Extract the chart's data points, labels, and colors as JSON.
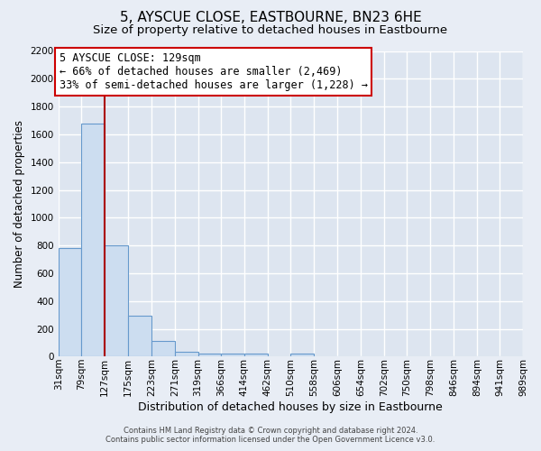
{
  "title": "5, AYSCUE CLOSE, EASTBOURNE, BN23 6HE",
  "subtitle": "Size of property relative to detached houses in Eastbourne",
  "xlabel": "Distribution of detached houses by size in Eastbourne",
  "ylabel": "Number of detached properties",
  "footer_line1": "Contains HM Land Registry data © Crown copyright and database right 2024.",
  "footer_line2": "Contains public sector information licensed under the Open Government Licence v3.0.",
  "bin_edges": [
    31,
    79,
    127,
    175,
    223,
    271,
    319,
    366,
    414,
    462,
    510,
    558,
    606,
    654,
    702,
    750,
    798,
    846,
    894,
    941,
    989
  ],
  "bar_heights": [
    780,
    1680,
    800,
    295,
    115,
    35,
    25,
    20,
    20,
    0,
    20,
    0,
    0,
    0,
    0,
    0,
    0,
    0,
    0,
    0
  ],
  "bar_color": "#ccddf0",
  "bar_edgecolor": "#6699cc",
  "property_line_x": 127,
  "property_line_color": "#aa0000",
  "annotation_line1": "5 AYSCUE CLOSE: 129sqm",
  "annotation_line2": "← 66% of detached houses are smaller (2,469)",
  "annotation_line3": "33% of semi-detached houses are larger (1,228) →",
  "annotation_box_edgecolor": "#cc0000",
  "annotation_box_facecolor": "#ffffff",
  "ylim": [
    0,
    2200
  ],
  "yticks": [
    0,
    200,
    400,
    600,
    800,
    1000,
    1200,
    1400,
    1600,
    1800,
    2000,
    2200
  ],
  "figure_bg": "#e8edf5",
  "plot_bg": "#dde5f0",
  "grid_color": "#ffffff",
  "title_fontsize": 11,
  "subtitle_fontsize": 9.5,
  "xlabel_fontsize": 9,
  "ylabel_fontsize": 8.5,
  "tick_fontsize": 7.5,
  "annotation_fontsize": 8.5,
  "footer_fontsize": 6
}
